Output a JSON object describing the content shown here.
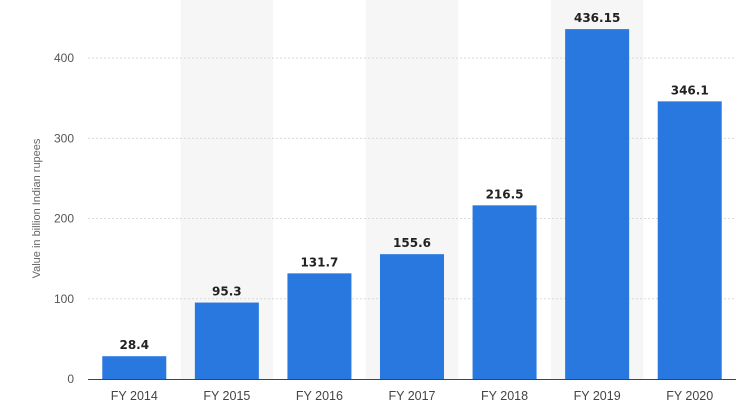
{
  "chart_data": {
    "type": "bar",
    "categories": [
      "FY 2014",
      "FY 2015",
      "FY 2016",
      "FY 2017",
      "FY 2018",
      "FY 2019",
      "FY 2020"
    ],
    "values": [
      28.4,
      95.3,
      131.7,
      155.6,
      216.5,
      436.15,
      346.1
    ],
    "value_labels": [
      "28.4",
      "95.3",
      "131.7",
      "155.6",
      "216.5",
      "436.15",
      "346.1"
    ],
    "title": "",
    "xlabel": "",
    "ylabel": "Value in billion Indian rupees",
    "ylim": [
      0,
      450
    ],
    "yticks": [
      0,
      100,
      200,
      300,
      400
    ],
    "grid": true,
    "alternating_bands": true,
    "legend": "none",
    "bar_color": "#2878df",
    "band_color": "#f6f6f6",
    "grid_color": "#d9d9d9",
    "axis_color": "#444444"
  }
}
